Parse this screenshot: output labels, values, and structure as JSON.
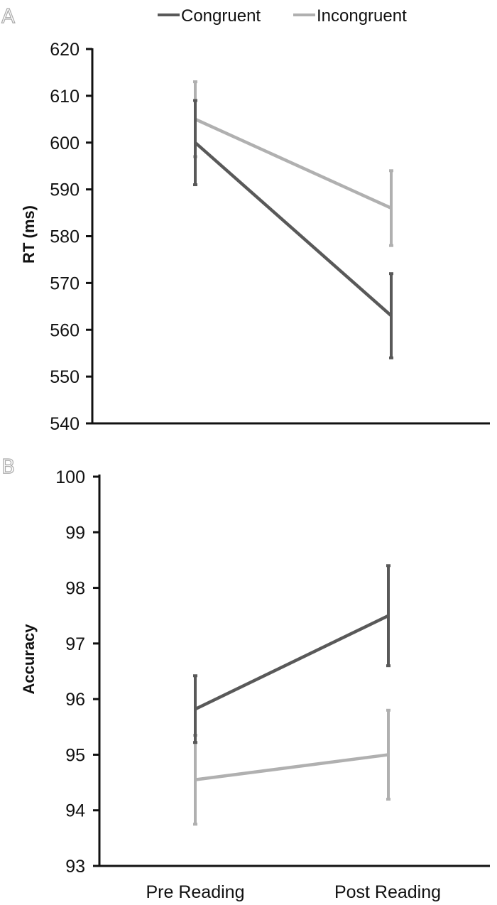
{
  "colors": {
    "Congruent": "#595959",
    "Incongruent": "#b0b0b0"
  },
  "legend": [
    "Congruent",
    "Incongruent"
  ],
  "chart_data": [
    {
      "panel": "A",
      "type": "line",
      "categories": [
        "Pre Reading",
        "Post Reading"
      ],
      "ylabel": "RT (ms)",
      "xlabel": "",
      "ylim": [
        540,
        620
      ],
      "yticks": [
        540,
        550,
        560,
        570,
        580,
        590,
        600,
        610,
        620
      ],
      "grid": false,
      "legend_position": "top",
      "series": [
        {
          "name": "Congruent",
          "values": [
            600,
            563
          ],
          "error": [
            9,
            9
          ]
        },
        {
          "name": "Incongruent",
          "values": [
            605,
            586
          ],
          "error": [
            8,
            8
          ]
        }
      ]
    },
    {
      "panel": "B",
      "type": "line",
      "categories": [
        "Pre Reading",
        "Post Reading"
      ],
      "ylabel": "Accuracy",
      "xlabel": "",
      "ylim": [
        93,
        100
      ],
      "yticks": [
        93,
        94,
        95,
        96,
        97,
        98,
        99,
        100
      ],
      "grid": false,
      "series": [
        {
          "name": "Congruent",
          "values": [
            95.82,
            97.5
          ],
          "error": [
            0.6,
            0.9
          ]
        },
        {
          "name": "Incongruent",
          "values": [
            94.55,
            95.0
          ],
          "error": [
            0.8,
            0.8
          ]
        }
      ]
    }
  ]
}
